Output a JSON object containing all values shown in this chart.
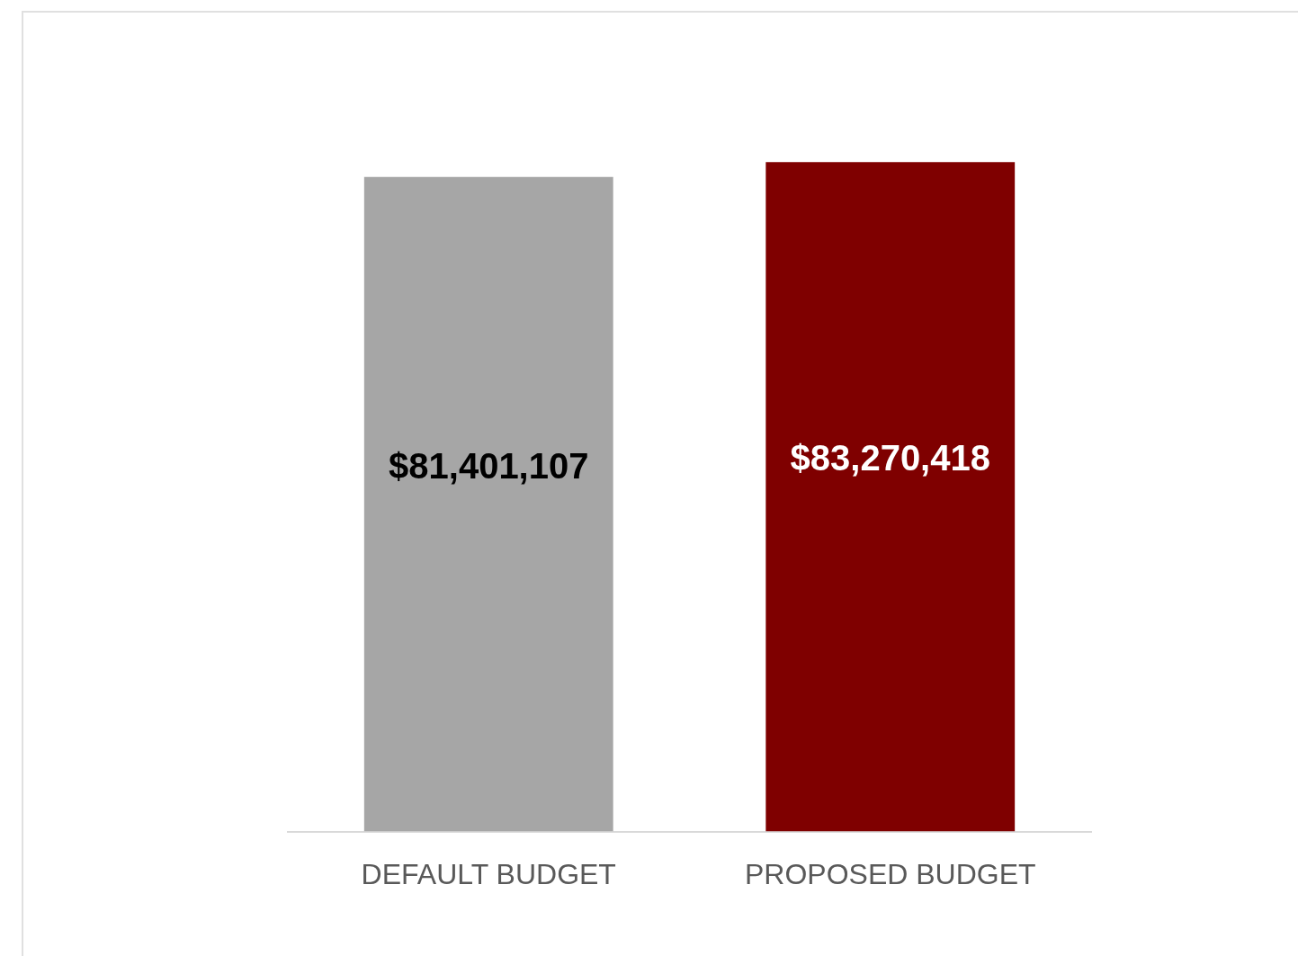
{
  "chart_data": {
    "type": "bar",
    "categories": [
      "DEFAULT BUDGET",
      "PROPOSED BUDGET"
    ],
    "values": [
      81401107,
      83270418
    ],
    "colors": [
      "#a6a6a6",
      "#7f0000"
    ],
    "value_labels": [
      "$81,401,107",
      "$83,270,418"
    ],
    "tick_labels": "x",
    "grid": false,
    "legend": false
  }
}
